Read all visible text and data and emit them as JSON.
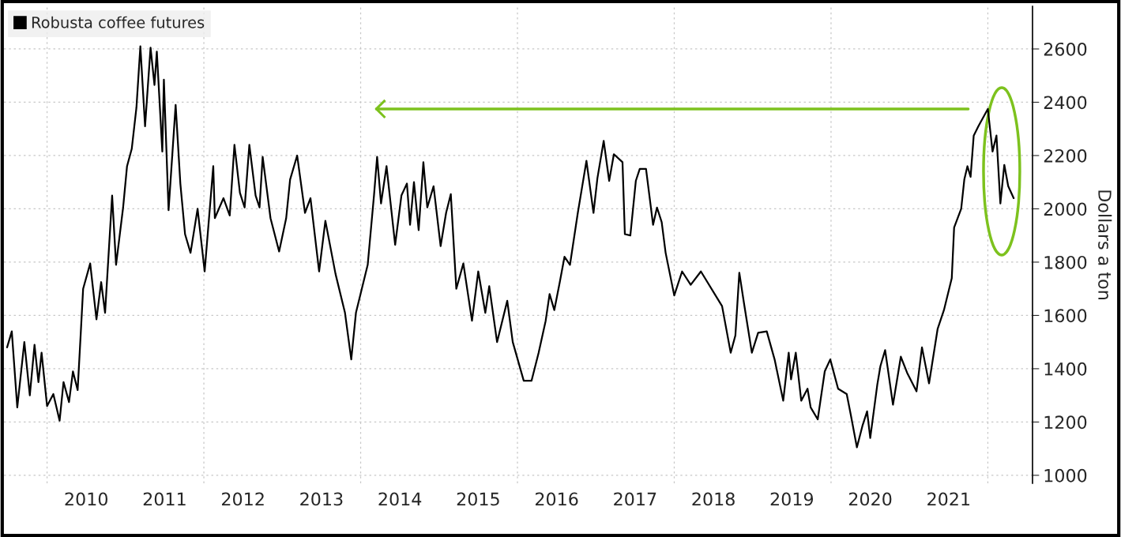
{
  "chart_data": {
    "type": "line",
    "ylabel": "Dollars a ton",
    "legend": "top left",
    "grid": true,
    "marker": "none",
    "line_style": "solid",
    "xlim": [
      2009.45,
      2022.57
    ],
    "ylim": [
      970,
      2760
    ],
    "xticks": [
      {
        "value": 2010,
        "label": null
      },
      {
        "value": 2012,
        "label": null
      },
      {
        "value": 2014,
        "label": null
      },
      {
        "value": 2016,
        "label": null
      },
      {
        "value": 2018,
        "label": null
      },
      {
        "value": 2020,
        "label": null
      },
      {
        "value": 2022,
        "label": null
      },
      {
        "value": 2010.5,
        "label": "2010"
      },
      {
        "value": 2011.5,
        "label": "2011"
      },
      {
        "value": 2012.5,
        "label": "2012"
      },
      {
        "value": 2013.5,
        "label": "2013"
      },
      {
        "value": 2014.5,
        "label": "2014"
      },
      {
        "value": 2015.5,
        "label": "2015"
      },
      {
        "value": 2016.5,
        "label": "2016"
      },
      {
        "value": 2017.5,
        "label": "2017"
      },
      {
        "value": 2018.5,
        "label": "2018"
      },
      {
        "value": 2019.5,
        "label": "2019"
      },
      {
        "value": 2020.5,
        "label": "2020"
      },
      {
        "value": 2021.5,
        "label": "2021"
      }
    ],
    "yticks": [
      1000,
      1200,
      1400,
      1600,
      1800,
      2000,
      2200,
      2400,
      2600
    ],
    "series": [
      {
        "name": "Robusta coffee futures",
        "color": "#000000",
        "x": [
          2009.49,
          2009.55,
          2009.62,
          2009.71,
          2009.78,
          2009.84,
          2009.89,
          2009.93,
          2010.0,
          2010.08,
          2010.16,
          2010.21,
          2010.28,
          2010.33,
          2010.39,
          2010.43,
          2010.46,
          2010.55,
          2010.63,
          2010.69,
          2010.74,
          2010.83,
          2010.88,
          2010.97,
          2011.02,
          2011.08,
          2011.14,
          2011.19,
          2011.25,
          2011.32,
          2011.37,
          2011.4,
          2011.47,
          2011.49,
          2011.55,
          2011.64,
          2011.7,
          2011.76,
          2011.83,
          2011.92,
          2012.01,
          2012.12,
          2012.14,
          2012.25,
          2012.33,
          2012.39,
          2012.46,
          2012.52,
          2012.58,
          2012.66,
          2012.71,
          2012.75,
          2012.85,
          2012.96,
          2013.05,
          2013.1,
          2013.19,
          2013.29,
          2013.36,
          2013.47,
          2013.55,
          2013.68,
          2013.8,
          2013.88,
          2013.94,
          2014.09,
          2014.17,
          2014.21,
          2014.26,
          2014.33,
          2014.44,
          2014.52,
          2014.59,
          2014.63,
          2014.68,
          2014.74,
          2014.8,
          2014.85,
          2014.93,
          2015.02,
          2015.09,
          2015.15,
          2015.22,
          2015.31,
          2015.42,
          2015.5,
          2015.59,
          2015.64,
          2015.74,
          2015.87,
          2015.94,
          2016.08,
          2016.18,
          2016.27,
          2016.36,
          2016.41,
          2016.47,
          2016.54,
          2016.6,
          2016.67,
          2016.77,
          2016.88,
          2016.97,
          2017.02,
          2017.1,
          2017.17,
          2017.23,
          2017.34,
          2017.37,
          2017.44,
          2017.51,
          2017.56,
          2017.64,
          2017.73,
          2017.78,
          2017.84,
          2017.89,
          2018.0,
          2018.1,
          2018.21,
          2018.34,
          2018.61,
          2018.72,
          2018.78,
          2018.83,
          2018.89,
          2018.99,
          2019.07,
          2019.18,
          2019.28,
          2019.39,
          2019.46,
          2019.49,
          2019.55,
          2019.62,
          2019.7,
          2019.74,
          2019.83,
          2019.92,
          2019.99,
          2020.09,
          2020.2,
          2020.25,
          2020.33,
          2020.4,
          2020.46,
          2020.5,
          2020.59,
          2020.63,
          2020.69,
          2020.79,
          2020.89,
          2020.97,
          2021.09,
          2021.16,
          2021.25,
          2021.36,
          2021.44,
          2021.54,
          2021.57,
          2021.66,
          2021.7,
          2021.74,
          2021.78,
          2021.82,
          2021.88,
          2022.0,
          2022.06,
          2022.11,
          2022.16,
          2022.21,
          2022.26,
          2022.33
        ],
        "values": [
          1480,
          1540,
          1255,
          1500,
          1300,
          1490,
          1350,
          1460,
          1260,
          1305,
          1205,
          1350,
          1275,
          1390,
          1320,
          1535,
          1700,
          1795,
          1585,
          1725,
          1610,
          2050,
          1790,
          2005,
          2160,
          2225,
          2380,
          2610,
          2310,
          2605,
          2465,
          2590,
          2215,
          2485,
          1995,
          2390,
          2095,
          1905,
          1835,
          2000,
          1765,
          2160,
          1965,
          2040,
          1975,
          2240,
          2060,
          2005,
          2240,
          2050,
          2005,
          2195,
          1965,
          1840,
          1965,
          2110,
          2200,
          1985,
          2040,
          1765,
          1955,
          1755,
          1610,
          1435,
          1610,
          1790,
          2050,
          2195,
          2020,
          2160,
          1865,
          2050,
          2095,
          1940,
          2100,
          1920,
          2175,
          2005,
          2085,
          1860,
          1985,
          2055,
          1700,
          1795,
          1580,
          1765,
          1610,
          1710,
          1500,
          1655,
          1500,
          1355,
          1355,
          1460,
          1580,
          1680,
          1620,
          1725,
          1820,
          1790,
          1985,
          2180,
          1985,
          2115,
          2255,
          2105,
          2205,
          2175,
          1905,
          1900,
          2105,
          2150,
          2150,
          1940,
          2005,
          1950,
          1835,
          1675,
          1765,
          1715,
          1765,
          1635,
          1460,
          1525,
          1760,
          1645,
          1460,
          1535,
          1540,
          1435,
          1280,
          1460,
          1360,
          1460,
          1280,
          1325,
          1255,
          1210,
          1390,
          1435,
          1325,
          1305,
          1230,
          1105,
          1185,
          1240,
          1140,
          1340,
          1410,
          1470,
          1265,
          1445,
          1385,
          1315,
          1480,
          1345,
          1550,
          1620,
          1740,
          1930,
          2000,
          2110,
          2160,
          2120,
          2275,
          2310,
          2375,
          2215,
          2275,
          2020,
          2165,
          2085,
          2040
        ]
      },
      {
        "type": "line",
        "color": "#7dc21e",
        "x": [
          2014.2,
          2021.75
        ],
        "values": [
          2375,
          2375
        ]
      }
    ]
  }
}
